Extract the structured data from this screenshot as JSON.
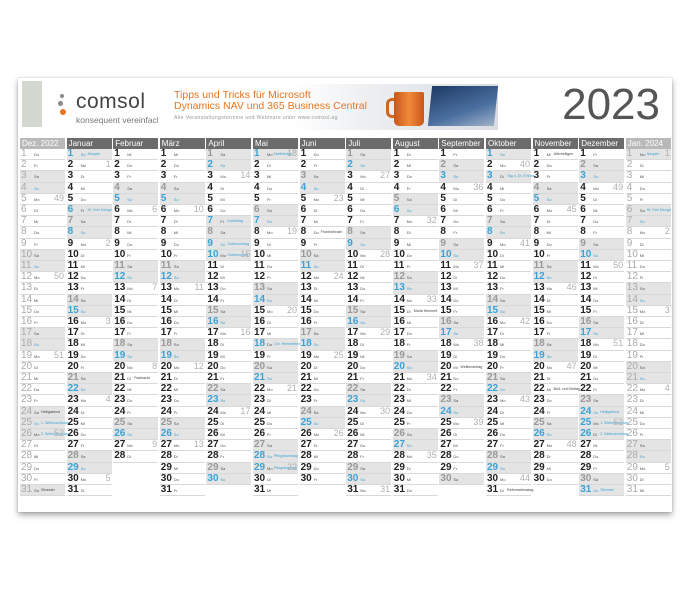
{
  "header": {
    "brand": "comsol",
    "tagline": "konsequent vereinfachen",
    "promo_title_1": "Tipps und Tricks für Microsoft",
    "promo_title_2": "Dynamics NAV und 365 Business Central",
    "promo_sub": "Alle Veranstaltungstermine und Webinare unter www.comsol.ag",
    "year": "2023"
  },
  "colors": {
    "header_bg": "#6b6b6b",
    "sunday": "#3aa2d6",
    "weekend_bg": "#e4e4e4",
    "accent_orange": "#e8741e"
  },
  "months": [
    {
      "label": "Dez. 2022",
      "out": true
    },
    {
      "label": "Januar"
    },
    {
      "label": "Februar"
    },
    {
      "label": "März"
    },
    {
      "label": "April"
    },
    {
      "label": "Mai"
    },
    {
      "label": "Juni"
    },
    {
      "label": "Juli"
    },
    {
      "label": "August"
    },
    {
      "label": "September"
    },
    {
      "label": "Oktober"
    },
    {
      "label": "November"
    },
    {
      "label": "Dezember"
    },
    {
      "label": "Jan. 2024",
      "out": true
    }
  ]
}
